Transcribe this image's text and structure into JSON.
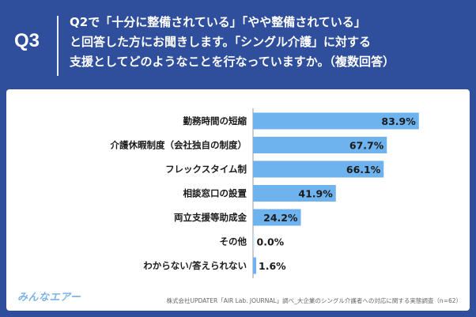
{
  "header": {
    "q_label": "Q3",
    "question_lines": [
      "Q2で「十分に整備されている」「やや整備されている」",
      "と回答した方にお聞きします。「シングル介護」に対する",
      "支援としてどのようなことを行なっていますか。（複数回答）"
    ]
  },
  "footer": {
    "logo_text": "みんなエアー",
    "source": "株式会社UPDATER「AIR Lab. JOURNAL」調べ_大企業のシングル介護者への対応に関する実態調査（n=62）"
  },
  "colors": {
    "background": "#2f4e9b",
    "bar": "#6eb2ee",
    "bar_zero": "#c9ddf3",
    "axis": "#999999"
  },
  "chart_data": {
    "type": "bar",
    "orientation": "horizontal",
    "categories": [
      "勤務時間の短縮",
      "介護休暇制度（会社独自の制度）",
      "フレックスタイム制",
      "相談窓口の設置",
      "両立支援等助成金",
      "その他",
      "わからない/答えられない"
    ],
    "values": [
      83.9,
      67.7,
      66.1,
      41.9,
      24.2,
      0.0,
      1.6
    ],
    "value_labels": [
      "83.9%",
      "67.7%",
      "66.1%",
      "41.9%",
      "24.2%",
      "0.0%",
      "1.6%"
    ],
    "unit": "%",
    "xlim": [
      0,
      100
    ],
    "n": 62
  }
}
